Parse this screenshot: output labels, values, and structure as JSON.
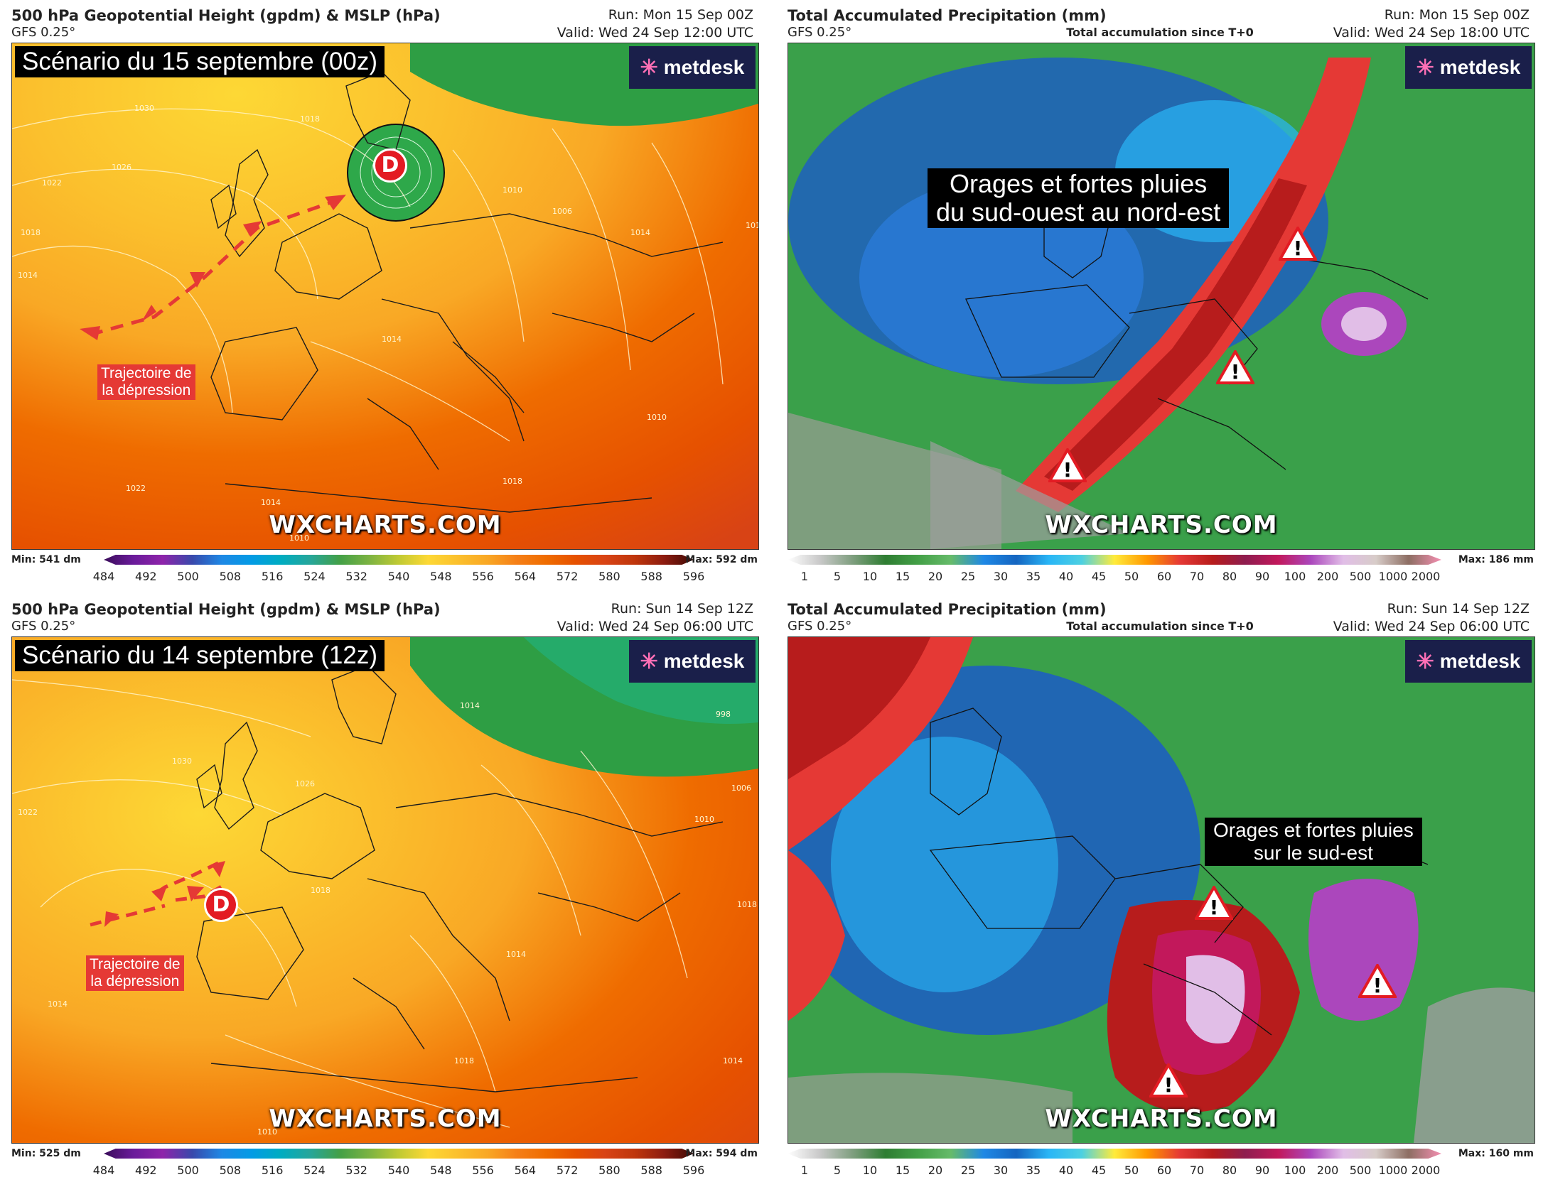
{
  "panels": [
    {
      "id": "tl",
      "title": "500 hPa Geopotential Height (gpdm) & MSLP (hPa)",
      "model": "GFS 0.25°",
      "run": "Run: Mon 15 Sep 00Z",
      "valid": "Valid: Wed 24 Sep 12:00 UTC",
      "scenario": "Scénario du 15 septembre (00z)",
      "brand": "metdesk",
      "watermark": "WXCHARTS.COM",
      "trajectory_label": [
        "Trajectoire de",
        "la dépression"
      ],
      "low_label": "D",
      "isobars": [
        "1030",
        "1026",
        "1022",
        "1018",
        "1014",
        "1018",
        "1010",
        "1006",
        "1014",
        "1018",
        "1014",
        "1010",
        "1022",
        "1014",
        "1018",
        "1010"
      ],
      "legend": {
        "min": "Min: 541 dm",
        "max": "Max: 592 dm",
        "ticks": [
          "484",
          "492",
          "500",
          "508",
          "516",
          "524",
          "532",
          "540",
          "548",
          "556",
          "564",
          "572",
          "580",
          "588",
          "596"
        ]
      }
    },
    {
      "id": "tr",
      "title": "Total Accumulated Precipitation (mm)",
      "model": "GFS 0.25°",
      "subtitle": "Total accumulation since T+0",
      "run": "Run: Mon 15 Sep 00Z",
      "valid": "Valid: Wed 24 Sep 18:00 UTC",
      "brand": "metdesk",
      "watermark": "WXCHARTS.COM",
      "annotation": [
        "Orages et fortes pluies",
        "du sud-ouest au nord-est"
      ],
      "legend": {
        "max": "Max: 186 mm",
        "ticks": [
          "1",
          "5",
          "10",
          "15",
          "20",
          "25",
          "30",
          "35",
          "40",
          "45",
          "50",
          "60",
          "70",
          "80",
          "90",
          "100",
          "200",
          "500",
          "1000",
          "2000"
        ]
      }
    },
    {
      "id": "bl",
      "title": "500 hPa Geopotential Height (gpdm) & MSLP (hPa)",
      "model": "GFS 0.25°",
      "run": "Run: Sun 14 Sep 12Z",
      "valid": "Valid: Wed 24 Sep 06:00 UTC",
      "scenario": "Scénario du 14 septembre (12z)",
      "brand": "metdesk",
      "watermark": "WXCHARTS.COM",
      "trajectory_label": [
        "Trajectoire de",
        "la dépression"
      ],
      "low_label": "D",
      "isobars": [
        "1030",
        "1022",
        "1026",
        "1014",
        "998",
        "1006",
        "1010",
        "1014",
        "1018",
        "1014",
        "1018",
        "1010",
        "1018",
        "1014"
      ],
      "legend": {
        "min": "Min: 525 dm",
        "max": "Max: 594 dm",
        "ticks": [
          "484",
          "492",
          "500",
          "508",
          "516",
          "524",
          "532",
          "540",
          "548",
          "556",
          "564",
          "572",
          "580",
          "588",
          "596"
        ]
      }
    },
    {
      "id": "br",
      "title": "Total Accumulated Precipitation (mm)",
      "model": "GFS 0.25°",
      "subtitle": "Total accumulation since T+0",
      "run": "Run: Sun 14 Sep 12Z",
      "valid": "Valid: Wed 24 Sep 06:00 UTC",
      "brand": "metdesk",
      "watermark": "WXCHARTS.COM",
      "annotation": [
        "Orages et fortes pluies",
        "sur le sud-est"
      ],
      "legend": {
        "max": "Max: 160 mm",
        "ticks": [
          "1",
          "5",
          "10",
          "15",
          "20",
          "25",
          "30",
          "35",
          "40",
          "45",
          "50",
          "60",
          "70",
          "80",
          "90",
          "100",
          "200",
          "500",
          "1000",
          "2000"
        ]
      }
    }
  ],
  "colors": {
    "gph_scale": [
      "#3a0d5a",
      "#6a1b9a",
      "#8e24aa",
      "#3949ab",
      "#1e88e5",
      "#039be5",
      "#00acc1",
      "#26a69a",
      "#43a047",
      "#7cb342",
      "#c0ca33",
      "#fdd835",
      "#fbc02d",
      "#f9a825",
      "#f57f17",
      "#ef6c00",
      "#e65100",
      "#d84315",
      "#bf360c",
      "#8d1c10",
      "#3e0a05"
    ],
    "precip_scale": [
      "#ffffff",
      "#c8c8c8",
      "#7e9e7e",
      "#2e7d32",
      "#43a047",
      "#66bb6a",
      "#1e88e5",
      "#1565c0",
      "#29b6f6",
      "#4dd0e1",
      "#ffeb3b",
      "#ff9800",
      "#e53935",
      "#b71c1c",
      "#8e1d4f",
      "#c2185b",
      "#ab47bc",
      "#e1bee7",
      "#d7ccc8",
      "#8d6e63",
      "#f48fb1"
    ],
    "accent_red": "#e53935",
    "brand_bg": "#1a1f4a"
  }
}
